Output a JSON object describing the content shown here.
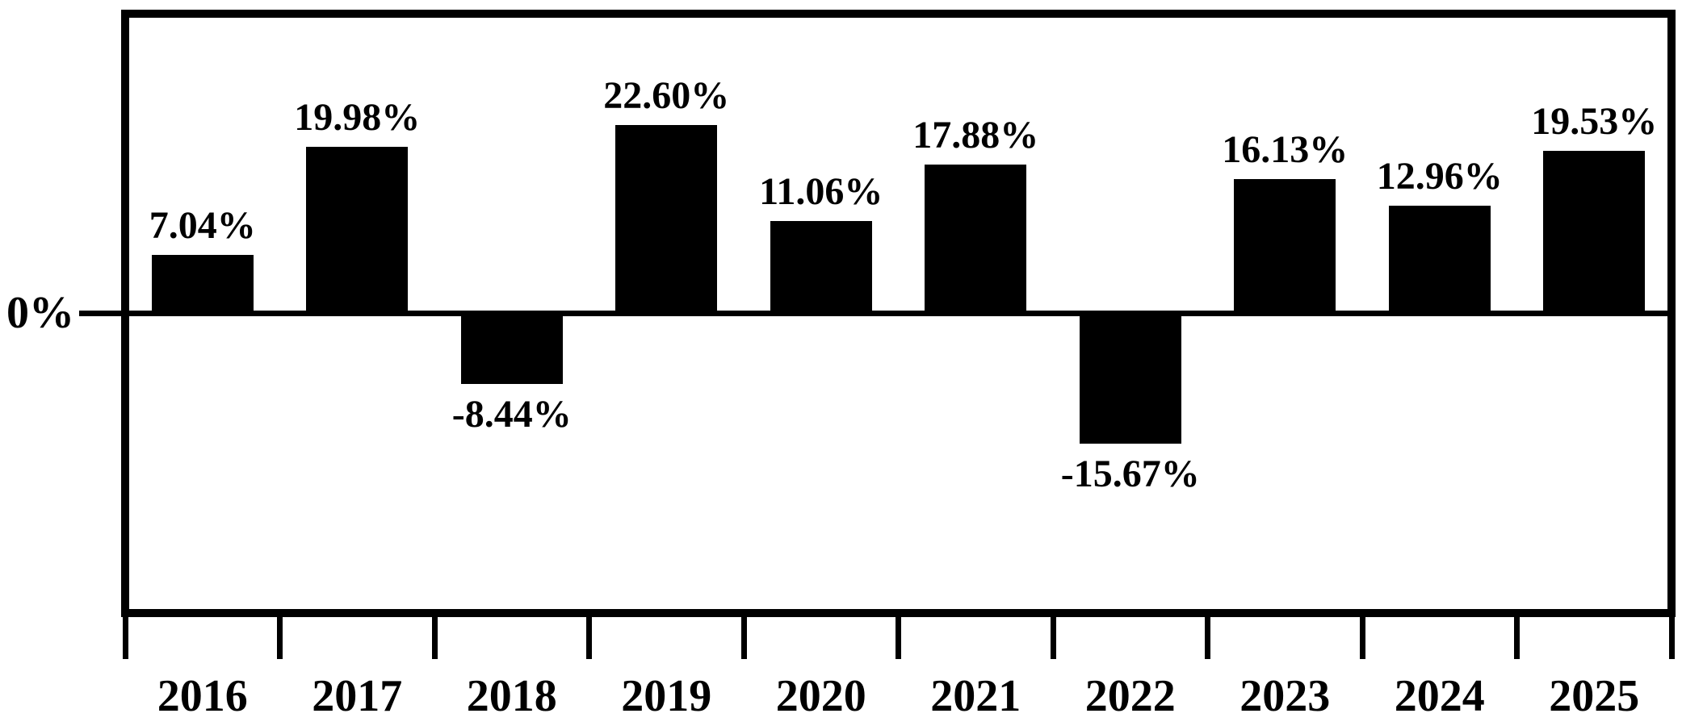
{
  "chart_data": {
    "type": "bar",
    "categories": [
      "2016",
      "2017",
      "2018",
      "2019",
      "2020",
      "2021",
      "2022",
      "2023",
      "2024",
      "2025"
    ],
    "values": [
      7.04,
      19.98,
      -8.44,
      22.6,
      11.06,
      17.88,
      -15.67,
      16.13,
      12.96,
      19.53
    ],
    "value_labels": [
      "7.04%",
      "19.98%",
      "-8.44%",
      "22.60%",
      "11.06%",
      "17.88%",
      "-15.67%",
      "16.13%",
      "12.96%",
      "19.53%"
    ],
    "y_tick_label": "0%",
    "ylim": [
      -35.5,
      35.5
    ],
    "xlabel": "",
    "ylabel": "",
    "grid": false,
    "legend_position": "none",
    "bar_color": "#000000",
    "axis_color": "#000000",
    "background_color": "#ffffff"
  }
}
